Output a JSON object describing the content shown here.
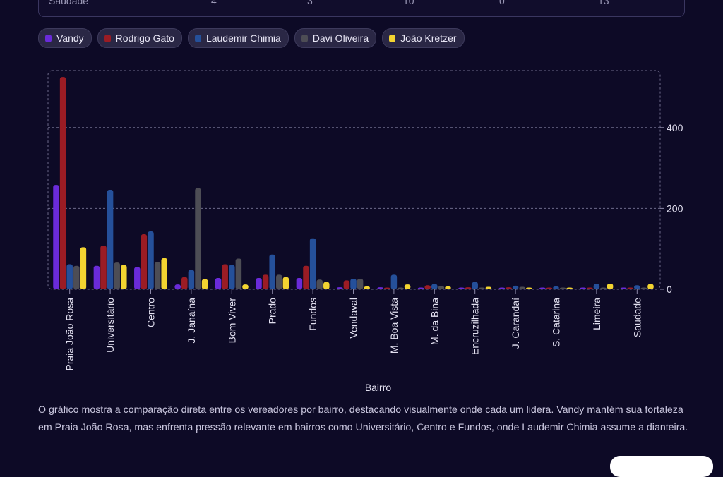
{
  "table": {
    "last_row": {
      "bairro": "Saudade",
      "values": [
        "4",
        "3",
        "10",
        "0",
        "13"
      ]
    }
  },
  "legend": [
    {
      "name": "Vandy",
      "color": "#6a2bd9"
    },
    {
      "name": "Rodrigo Gato",
      "color": "#9b1c24"
    },
    {
      "name": "Laudemir Chimia",
      "color": "#25509a"
    },
    {
      "name": "Davi Oliveira",
      "color": "#4d4d55"
    },
    {
      "name": "João Kretzer",
      "color": "#f3d431"
    }
  ],
  "caption": "O gráfico mostra a comparação direta entre os vereadores por bairro, destacando visualmente onde cada um lidera. Vandy mantém sua fortaleza em Praia João Rosa, mas enfrenta pressão relevante em bairros como Universitário, Centro e Fundos, onde Laudemir Chimia assume a dianteira.",
  "chart_data": {
    "type": "bar",
    "xlabel": "Bairro",
    "ylabel": "",
    "ylim": [
      0,
      520
    ],
    "y_ticks": [
      0,
      200,
      400
    ],
    "grid": true,
    "categories": [
      "Praia João Rosa",
      "Universitário",
      "Centro",
      "J. Janaína",
      "Bom Viver",
      "Prado",
      "Fundos",
      "Vendaval",
      "M. Boa Vista",
      "M. da Bina",
      "Encruzilhada",
      "J. Carandaí",
      "S. Catarina",
      "Limeira",
      "Saudade"
    ],
    "series": [
      {
        "name": "Vandy",
        "color": "#6a2bd9",
        "values": [
          258,
          58,
          55,
          12,
          28,
          28,
          28,
          5,
          5,
          4,
          3,
          4,
          3,
          4,
          4
        ]
      },
      {
        "name": "Rodrigo Gato",
        "color": "#9b1c24",
        "values": [
          525,
          108,
          136,
          30,
          62,
          36,
          58,
          22,
          3,
          10,
          5,
          5,
          3,
          3,
          3
        ]
      },
      {
        "name": "Laudemir Chimia",
        "color": "#25509a",
        "values": [
          62,
          246,
          143,
          48,
          60,
          86,
          126,
          26,
          36,
          13,
          18,
          9,
          7,
          13,
          10
        ]
      },
      {
        "name": "Davi Oliveira",
        "color": "#4d4d55",
        "values": [
          58,
          66,
          67,
          250,
          76,
          36,
          24,
          26,
          4,
          8,
          3,
          6,
          3,
          2,
          0
        ]
      },
      {
        "name": "João Kretzer",
        "color": "#f3d431",
        "values": [
          104,
          60,
          77,
          25,
          12,
          30,
          18,
          7,
          12,
          7,
          6,
          4,
          3,
          14,
          13
        ]
      }
    ]
  }
}
